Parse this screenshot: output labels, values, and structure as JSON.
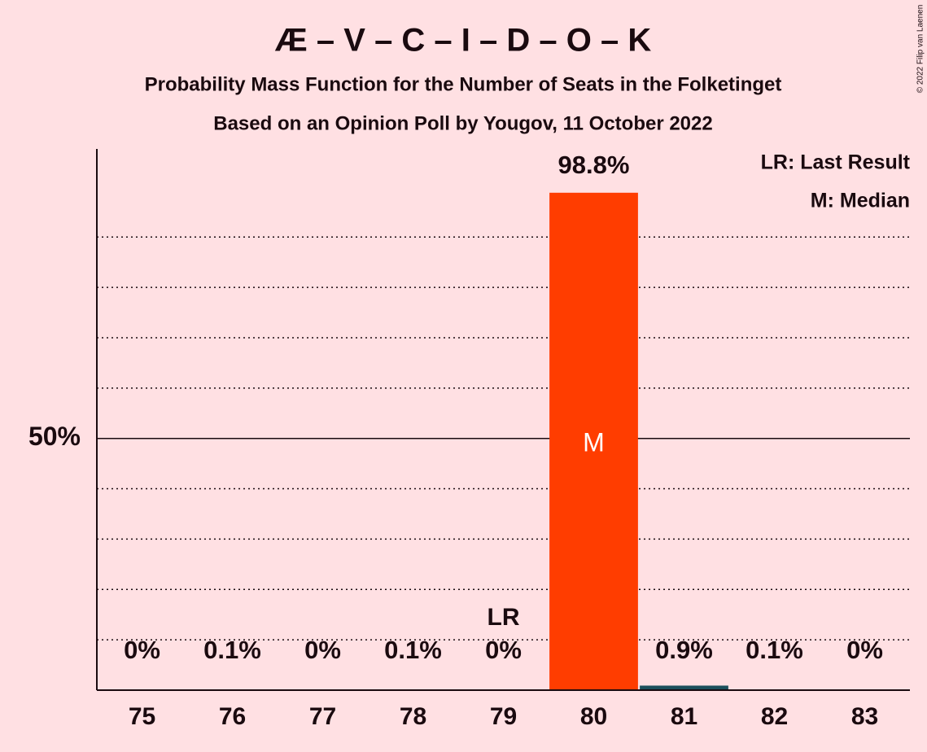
{
  "chart_data": {
    "type": "bar",
    "title": "Æ – V – C – I – D – O – K",
    "subtitles": [
      "Probability Mass Function for the Number of Seats in the Folketinget",
      "Based on an Opinion Poll by Yougov, 11 October 2022"
    ],
    "categories": [
      "75",
      "76",
      "77",
      "78",
      "79",
      "80",
      "81",
      "82",
      "83"
    ],
    "values": [
      0,
      0.1,
      0,
      0.1,
      0,
      98.8,
      0.9,
      0.1,
      0
    ],
    "value_labels": [
      "0%",
      "0.1%",
      "0%",
      "0.1%",
      "0%",
      "98.8%",
      "0.9%",
      "0.1%",
      "0%"
    ],
    "colors": [
      "#1b4f5c",
      "#1b4f5c",
      "#1b4f5c",
      "#1b4f5c",
      "#1b4f5c",
      "#ff3d00",
      "#1b4f5c",
      "#1b4f5c",
      "#1b4f5c"
    ],
    "ylim": [
      0,
      107.5
    ],
    "yticks": [
      {
        "value": 50,
        "label": "50%"
      }
    ],
    "minor_yticks": [
      10,
      20,
      30,
      40,
      60,
      70,
      80,
      90
    ],
    "last_result": {
      "category": "79",
      "label": "LR"
    },
    "median": {
      "category": "80",
      "label": "M"
    },
    "legend": [
      "LR: Last Result",
      "M: Median"
    ],
    "copyright": "© 2022 Filip van Laenen"
  }
}
